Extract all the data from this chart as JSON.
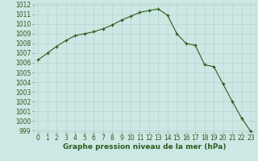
{
  "x": [
    0,
    1,
    2,
    3,
    4,
    5,
    6,
    7,
    8,
    9,
    10,
    11,
    12,
    13,
    14,
    15,
    16,
    17,
    18,
    19,
    20,
    21,
    22,
    23
  ],
  "y": [
    1006.3,
    1007.0,
    1007.7,
    1008.3,
    1008.8,
    1009.0,
    1009.2,
    1009.5,
    1009.9,
    1010.4,
    1010.8,
    1011.2,
    1011.4,
    1011.55,
    1010.9,
    1009.0,
    1008.0,
    1007.8,
    1005.8,
    1005.6,
    1003.8,
    1002.0,
    1000.3,
    998.9
  ],
  "ylim_min": 999,
  "ylim_max": 1012,
  "yticks": [
    999,
    1000,
    1001,
    1002,
    1003,
    1004,
    1005,
    1006,
    1007,
    1008,
    1009,
    1010,
    1011,
    1012
  ],
  "xticks": [
    0,
    1,
    2,
    3,
    4,
    5,
    6,
    7,
    8,
    9,
    10,
    11,
    12,
    13,
    14,
    15,
    16,
    17,
    18,
    19,
    20,
    21,
    22,
    23
  ],
  "xlabel": "Graphe pression niveau de la mer (hPa)",
  "line_color": "#2d5a1b",
  "marker": "+",
  "bg_color": "#cce8e4",
  "grid_color": "#aecfcb",
  "tick_color": "#2d5a1b",
  "xlabel_color": "#2d5a1b",
  "xlabel_fontsize": 6.5,
  "tick_fontsize": 5.5,
  "linewidth": 0.8,
  "markersize": 3.5,
  "markeredgewidth": 0.9
}
